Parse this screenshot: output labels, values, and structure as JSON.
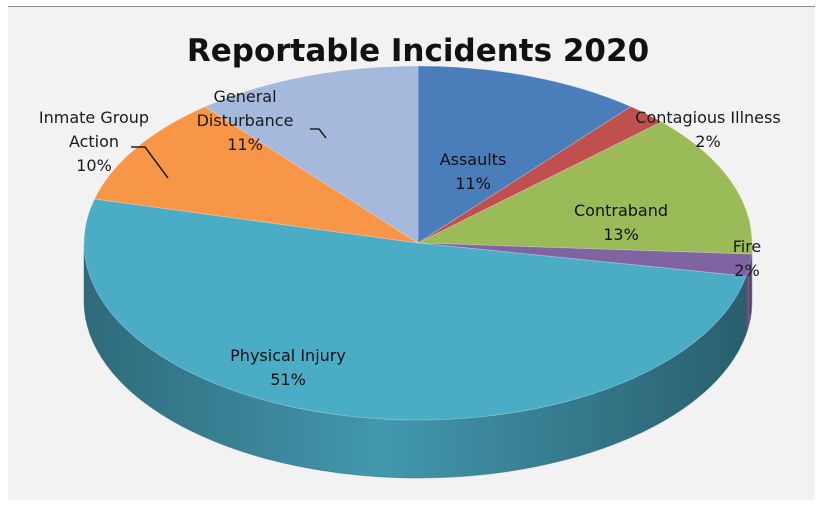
{
  "chart_data": {
    "type": "pie",
    "title": "Reportable Incidents 2020",
    "categories": [
      "Assaults",
      "Contagious Illness",
      "Contraband",
      "Fire",
      "Physical Injury",
      "Inmate Group Action",
      "General Disturbance"
    ],
    "values": [
      11,
      2,
      13,
      2,
      51,
      10,
      11
    ],
    "labels": [
      {
        "lines": [
          "Assaults"
        ],
        "pct": "11%"
      },
      {
        "lines": [
          "Contagious Illness"
        ],
        "pct": "2%"
      },
      {
        "lines": [
          "Contraband"
        ],
        "pct": "13%"
      },
      {
        "lines": [
          "Fire"
        ],
        "pct": "2%"
      },
      {
        "lines": [
          "Physical Injury"
        ],
        "pct": "51%"
      },
      {
        "lines": [
          "Inmate Group",
          "Action"
        ],
        "pct": "10%"
      },
      {
        "lines": [
          "General",
          "Disturbance"
        ],
        "pct": "11%"
      }
    ],
    "colors": [
      "#4a7ebb",
      "#c0504d",
      "#9bbb59",
      "#8064a2",
      "#4bacc6",
      "#f79646",
      "#a5b9dd"
    ],
    "style": "3d-perspective",
    "legend": "none"
  }
}
